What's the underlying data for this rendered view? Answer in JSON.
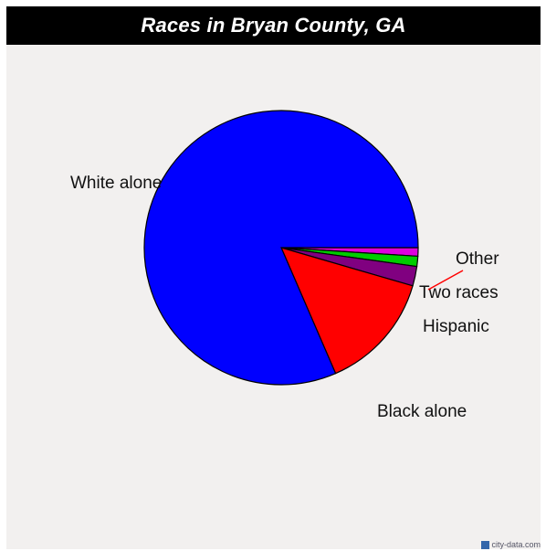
{
  "title": "Races in Bryan County, GA",
  "chart_data": {
    "type": "pie",
    "title": "Races in Bryan County, GA",
    "slices": [
      {
        "label": "White alone",
        "value": 81.5,
        "color": "#0000ff"
      },
      {
        "label": "Black alone",
        "value": 14.0,
        "color": "#ff0000"
      },
      {
        "label": "Hispanic",
        "value": 2.3,
        "color": "#800080"
      },
      {
        "label": "Two races",
        "value": 1.2,
        "color": "#00cc00"
      },
      {
        "label": "Other",
        "value": 1.0,
        "color": "#dd00dd"
      }
    ],
    "start_angle_deg": 0,
    "direction": "counterclockwise",
    "slice_stroke": "#000000",
    "leader_line_color": "#ff0000"
  },
  "watermark": "city-data.com"
}
